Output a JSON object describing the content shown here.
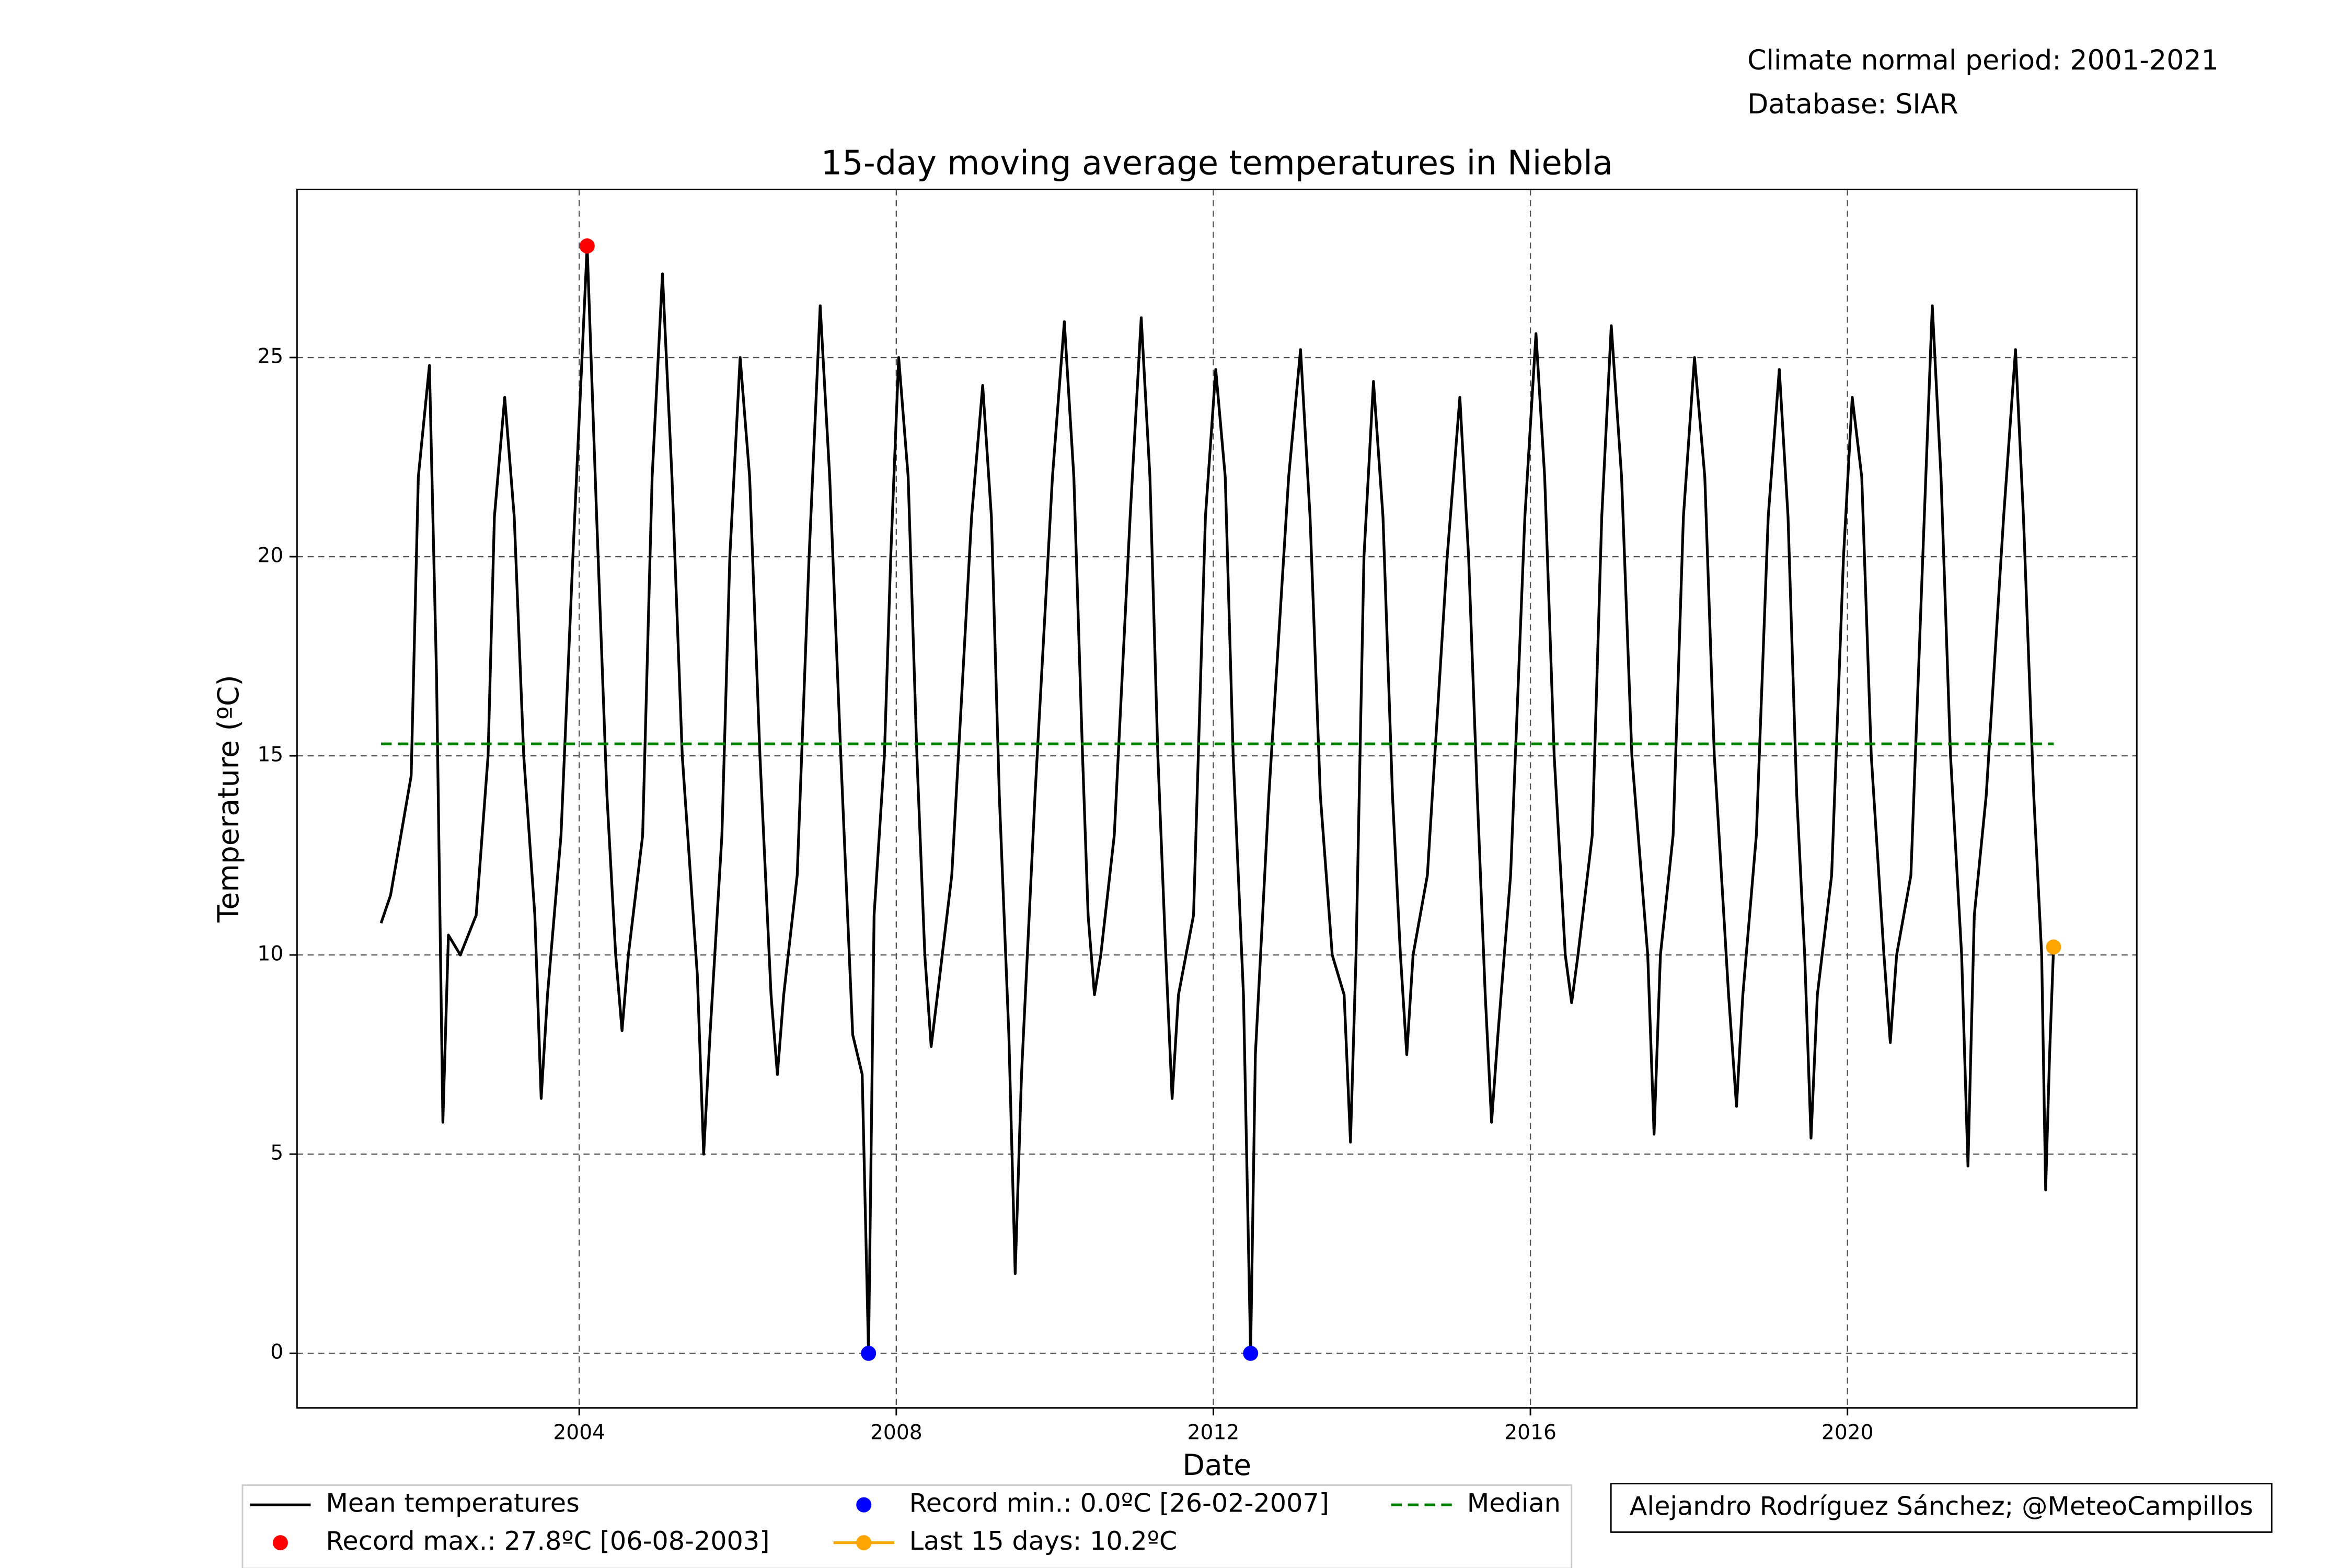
{
  "chart_data": {
    "type": "line",
    "title": "15-day moving average temperatures in Niebla",
    "x_label": "Date",
    "y_label": "Temperature (ºC)",
    "annotations": [
      "Climate normal period: 2001-2021",
      "Database: SIAR"
    ],
    "credit": "Alejandro Rodríguez Sánchez; @MeteoCampillos",
    "xlim": [
      2000.44,
      2023.65
    ],
    "ylim": [
      -1.37,
      29.22
    ],
    "xticks": [
      2004,
      2008,
      2012,
      2016,
      2020
    ],
    "yticks": [
      0,
      5,
      10,
      15,
      20,
      25
    ],
    "grid": true,
    "series": [
      {
        "name": "Mean temperatures",
        "color": "#000000",
        "style": "line",
        "x": [
          2001.5,
          2001.62,
          2001.75,
          2001.88,
          2001.97,
          2002.11,
          2002.2,
          2002.28,
          2002.35,
          2002.5,
          2002.7,
          2002.85,
          2002.93,
          2003.06,
          2003.18,
          2003.3,
          2003.44,
          2003.52,
          2003.6,
          2003.77,
          2003.92,
          2004.1,
          2004.22,
          2004.35,
          2004.46,
          2004.54,
          2004.62,
          2004.8,
          2004.92,
          2005.05,
          2005.17,
          2005.3,
          2005.49,
          2005.57,
          2005.65,
          2005.8,
          2005.9,
          2006.03,
          2006.15,
          2006.28,
          2006.42,
          2006.5,
          2006.58,
          2006.75,
          2006.9,
          2007.04,
          2007.16,
          2007.3,
          2007.45,
          2007.57,
          2007.65,
          2007.72,
          2007.85,
          2007.93,
          2008.03,
          2008.15,
          2008.26,
          2008.36,
          2008.44,
          2008.52,
          2008.7,
          2008.95,
          2009.09,
          2009.2,
          2009.3,
          2009.42,
          2009.5,
          2009.58,
          2009.75,
          2009.97,
          2010.12,
          2010.24,
          2010.35,
          2010.42,
          2010.5,
          2010.58,
          2010.75,
          2010.95,
          2011.09,
          2011.2,
          2011.3,
          2011.4,
          2011.48,
          2011.56,
          2011.75,
          2011.9,
          2012.03,
          2012.15,
          2012.25,
          2012.38,
          2012.47,
          2012.53,
          2012.7,
          2012.95,
          2013.1,
          2013.22,
          2013.35,
          2013.5,
          2013.65,
          2013.73,
          2013.8,
          2013.9,
          2014.02,
          2014.14,
          2014.26,
          2014.36,
          2014.44,
          2014.52,
          2014.7,
          2014.95,
          2015.11,
          2015.22,
          2015.33,
          2015.43,
          2015.51,
          2015.59,
          2015.75,
          2015.93,
          2016.07,
          2016.18,
          2016.3,
          2016.44,
          2016.52,
          2016.6,
          2016.78,
          2016.9,
          2017.02,
          2017.15,
          2017.28,
          2017.48,
          2017.56,
          2017.64,
          2017.8,
          2017.93,
          2018.07,
          2018.2,
          2018.32,
          2018.5,
          2018.6,
          2018.68,
          2018.85,
          2019.0,
          2019.14,
          2019.25,
          2019.36,
          2019.46,
          2019.54,
          2019.62,
          2019.8,
          2019.95,
          2020.06,
          2020.18,
          2020.3,
          2020.46,
          2020.54,
          2020.62,
          2020.8,
          2020.95,
          2021.07,
          2021.18,
          2021.3,
          2021.44,
          2021.52,
          2021.6,
          2021.75,
          2021.97,
          2022.12,
          2022.22,
          2022.35,
          2022.45,
          2022.5,
          2022.55,
          2022.6
        ],
        "values": [
          10.8,
          11.5,
          13,
          14.5,
          22,
          24.8,
          17,
          5.8,
          10.5,
          10,
          11,
          15,
          21,
          24,
          21,
          15,
          11,
          6.4,
          9,
          13,
          20,
          27.8,
          21,
          14,
          10,
          8.1,
          10,
          13,
          22,
          27.1,
          22,
          15,
          9.5,
          5.0,
          8,
          13,
          20,
          25,
          22,
          15,
          9,
          7,
          9,
          12,
          20,
          26.3,
          22,
          15,
          8,
          7,
          0,
          11,
          15,
          20,
          25,
          22,
          15,
          10,
          7.7,
          9,
          12,
          21,
          24.3,
          21,
          14,
          8,
          2.0,
          7,
          14,
          22,
          25.9,
          22,
          15,
          11,
          9,
          10,
          13,
          21,
          26,
          22,
          15,
          10,
          6.4,
          9,
          11,
          21,
          24.7,
          22,
          15,
          9,
          0,
          7.5,
          14,
          22,
          25.2,
          21,
          14,
          10,
          9,
          5.3,
          10,
          20,
          24.4,
          21,
          14,
          10,
          7.5,
          10,
          12,
          20,
          24,
          20,
          14,
          9,
          5.8,
          8,
          12,
          21,
          25.6,
          22,
          15,
          10,
          8.8,
          10,
          13,
          21,
          25.8,
          22,
          15,
          10,
          5.5,
          10,
          13,
          21,
          25,
          22,
          15,
          9,
          6.2,
          9,
          13,
          21,
          24.7,
          21,
          14,
          10,
          5.4,
          9,
          12,
          20,
          24,
          22,
          15,
          10,
          7.8,
          10,
          12,
          20,
          26.3,
          22,
          15,
          10,
          4.7,
          11,
          14,
          21,
          25.2,
          21,
          14,
          10,
          4.1,
          7.5,
          10.2
        ]
      },
      {
        "name": "Record max.: 27.8ºC [06-08-2003]",
        "color": "#ff0000",
        "style": "points",
        "x": [
          2004.1
        ],
        "values": [
          27.8
        ]
      },
      {
        "name": "Record min.: 0.0ºC [26-02-2007]",
        "color": "#0000ff",
        "style": "points",
        "x": [
          2007.65,
          2012.47
        ],
        "values": [
          0,
          0
        ]
      },
      {
        "name": "Last 15 days: 10.2ºC",
        "color": "#ffa500",
        "style": "line-marker",
        "x": [
          2022.6
        ],
        "values": [
          10.2
        ]
      },
      {
        "name": "Median",
        "color": "#008000",
        "style": "dashed",
        "x": [
          2001.5,
          2022.6
        ],
        "values": [
          15.3,
          15.3
        ]
      }
    ]
  }
}
